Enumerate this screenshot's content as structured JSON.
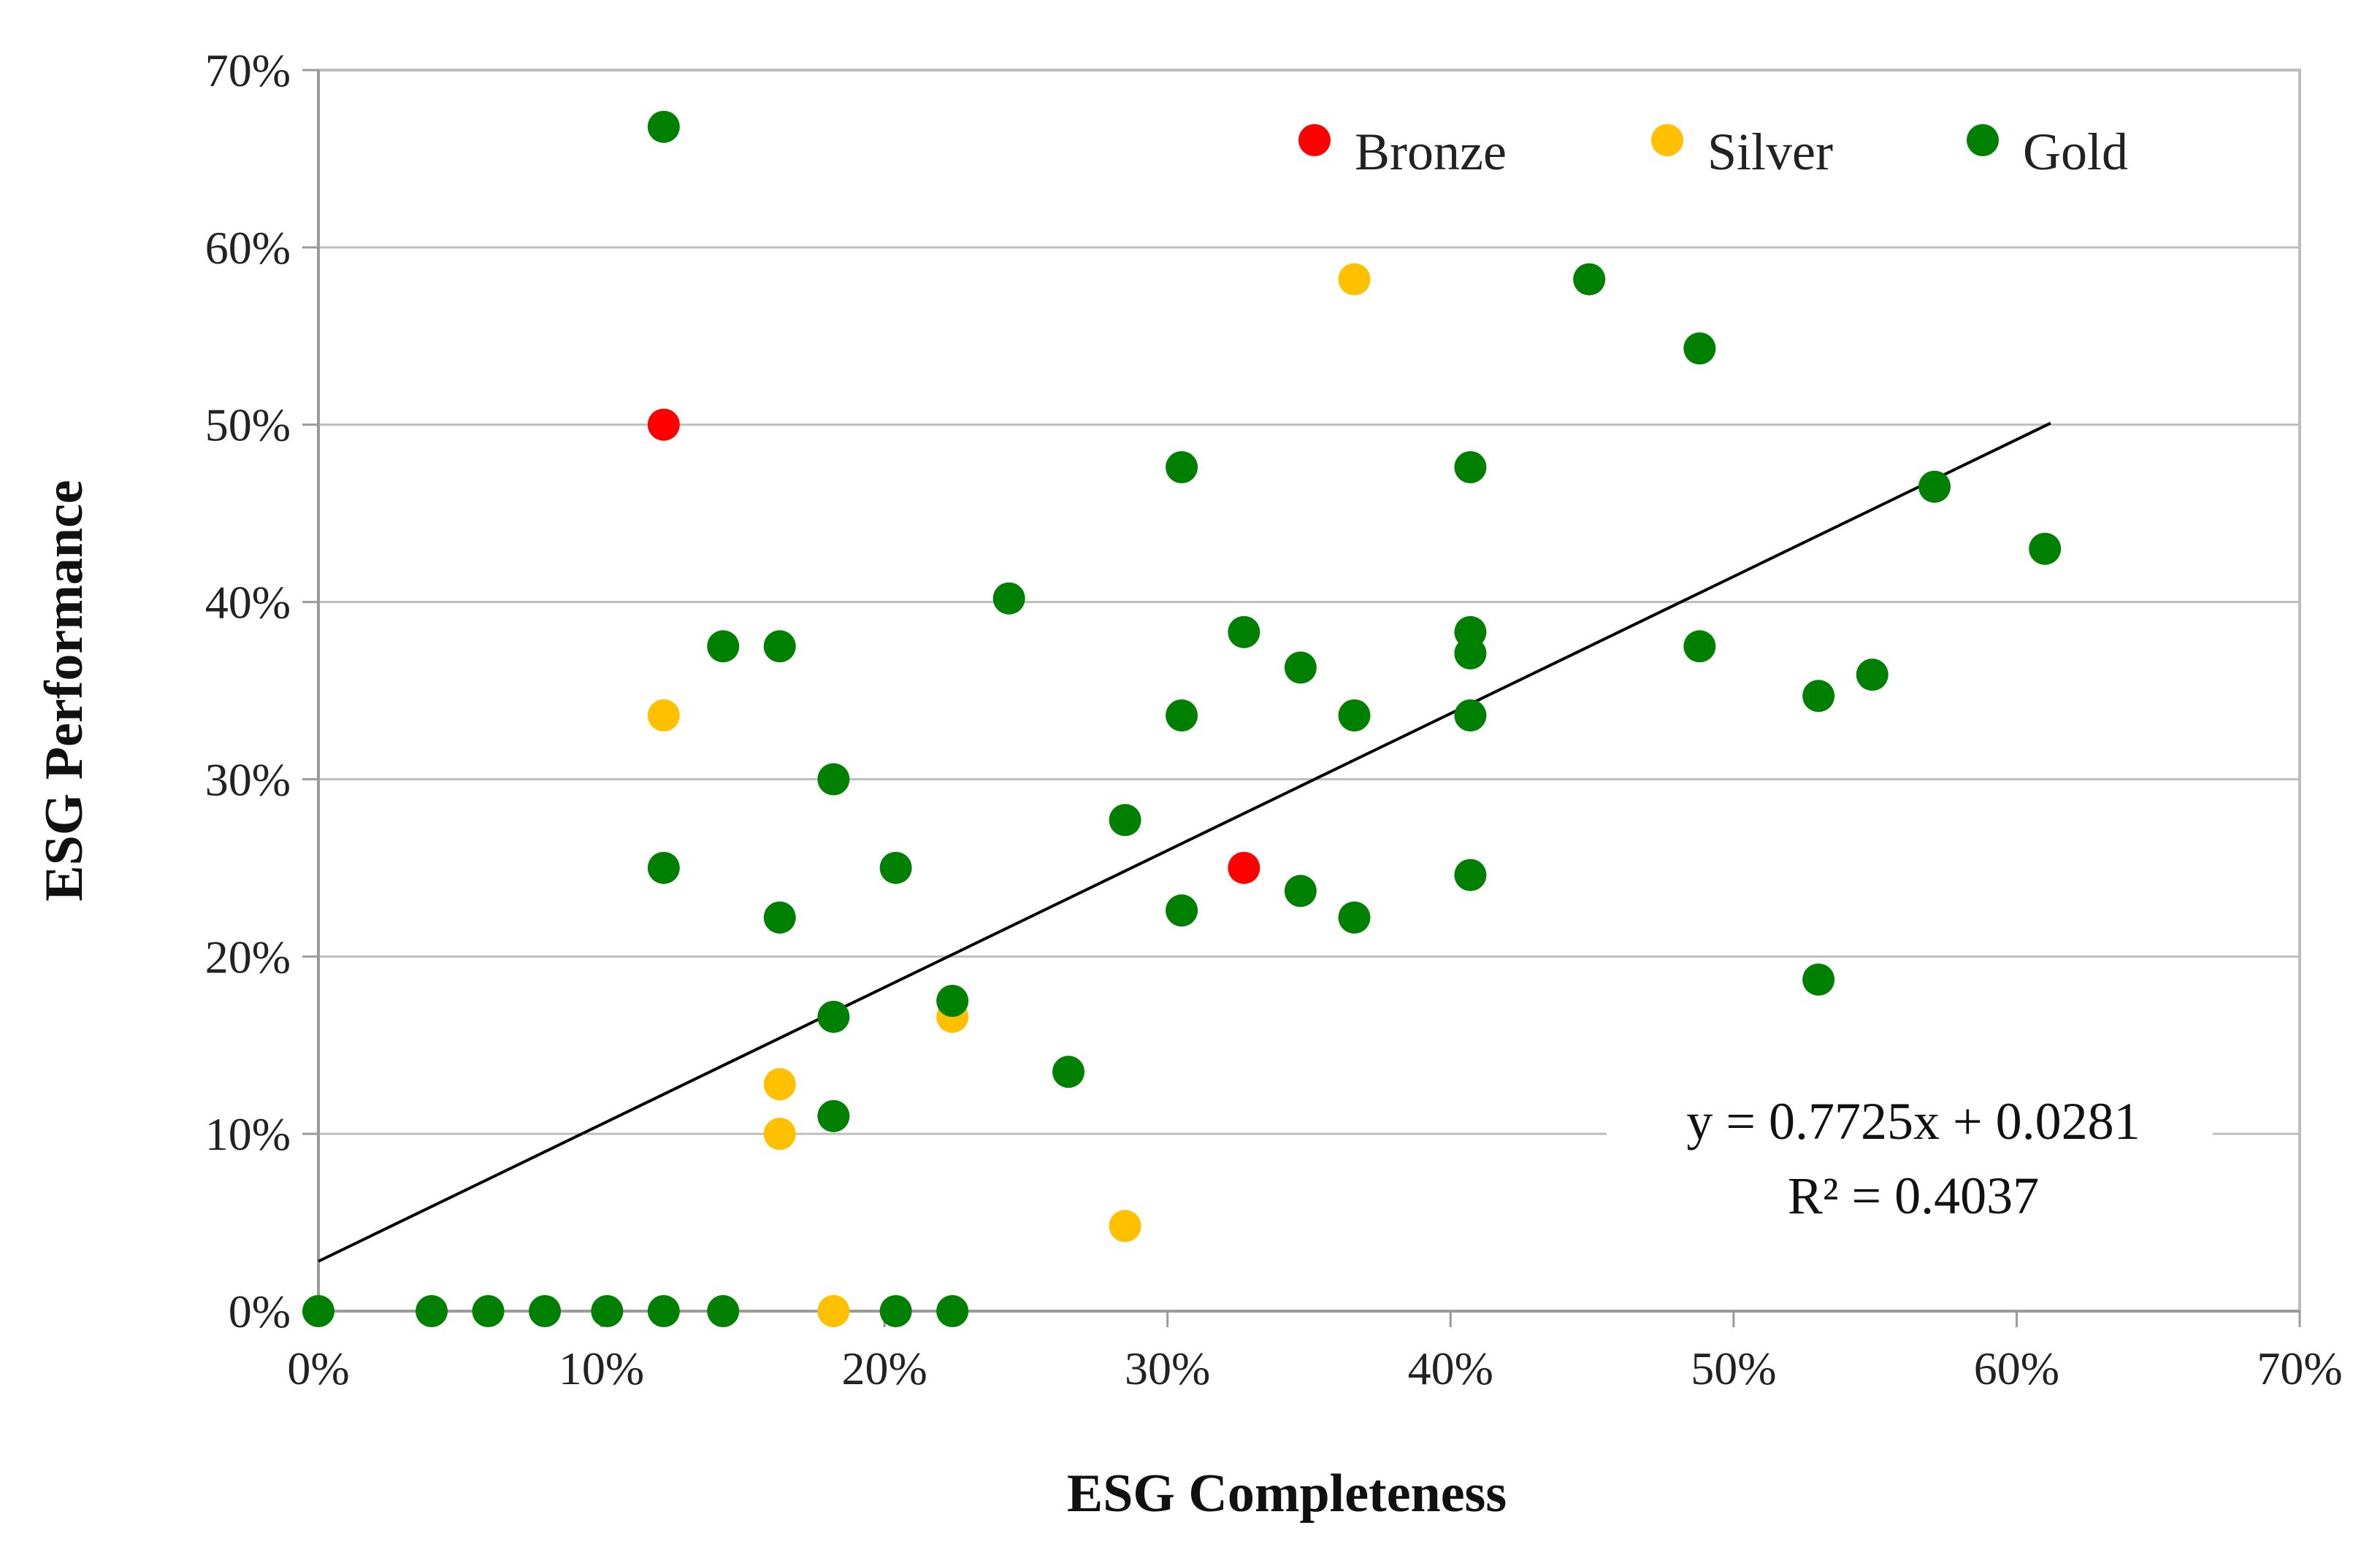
{
  "chart_data": {
    "type": "scatter",
    "title": "",
    "xlabel": "ESG Completeness",
    "ylabel": "ESG Performance",
    "xlim": [
      0,
      0.7
    ],
    "ylim": [
      0,
      0.7
    ],
    "xticks": [
      "0%",
      "10%",
      "20%",
      "30%",
      "40%",
      "50%",
      "60%",
      "70%"
    ],
    "yticks": [
      "0%",
      "10%",
      "20%",
      "30%",
      "40%",
      "50%",
      "60%",
      "70%"
    ],
    "grid": "horizontal",
    "legend_position": "top-right",
    "series": [
      {
        "name": "Bronze",
        "color": "#ff0000",
        "points": [
          [
            0.122,
            0.5
          ],
          [
            0.327,
            0.25
          ]
        ]
      },
      {
        "name": "Silver",
        "color": "#ffc000",
        "points": [
          [
            0.122,
            0.336
          ],
          [
            0.163,
            0.128
          ],
          [
            0.163,
            0.1
          ],
          [
            0.182,
            0.0
          ],
          [
            0.224,
            0.166
          ],
          [
            0.285,
            0.048
          ],
          [
            0.366,
            0.582
          ]
        ]
      },
      {
        "name": "Gold",
        "color": "#008000",
        "points": [
          [
            0.122,
            0.668
          ],
          [
            0.122,
            0.25
          ],
          [
            0.143,
            0.375
          ],
          [
            0.163,
            0.375
          ],
          [
            0.163,
            0.222
          ],
          [
            0.182,
            0.3
          ],
          [
            0.182,
            0.166
          ],
          [
            0.182,
            0.11
          ],
          [
            0.204,
            0.25
          ],
          [
            0.224,
            0.175
          ],
          [
            0.244,
            0.402
          ],
          [
            0.265,
            0.135
          ],
          [
            0.285,
            0.277
          ],
          [
            0.305,
            0.476
          ],
          [
            0.305,
            0.336
          ],
          [
            0.305,
            0.226
          ],
          [
            0.327,
            0.383
          ],
          [
            0.347,
            0.363
          ],
          [
            0.347,
            0.237
          ],
          [
            0.366,
            0.336
          ],
          [
            0.366,
            0.222
          ],
          [
            0.407,
            0.476
          ],
          [
            0.407,
            0.383
          ],
          [
            0.407,
            0.371
          ],
          [
            0.407,
            0.336
          ],
          [
            0.407,
            0.246
          ],
          [
            0.449,
            0.582
          ],
          [
            0.488,
            0.543
          ],
          [
            0.488,
            0.375
          ],
          [
            0.53,
            0.347
          ],
          [
            0.53,
            0.187
          ],
          [
            0.549,
            0.359
          ],
          [
            0.571,
            0.465
          ],
          [
            0.61,
            0.43
          ],
          [
            0.0,
            0.0
          ],
          [
            0.04,
            0.0
          ],
          [
            0.06,
            0.0
          ],
          [
            0.08,
            0.0
          ],
          [
            0.102,
            0.0
          ],
          [
            0.122,
            0.0
          ],
          [
            0.143,
            0.0
          ],
          [
            0.204,
            0.0
          ],
          [
            0.224,
            0.0
          ]
        ]
      }
    ],
    "trendline": {
      "slope": 0.7725,
      "intercept": 0.0281,
      "x_range": [
        0,
        0.612
      ],
      "equation": "y = 0.7725x + 0.0281",
      "r_squared": "R² = 0.4037",
      "color": "#000000"
    }
  }
}
